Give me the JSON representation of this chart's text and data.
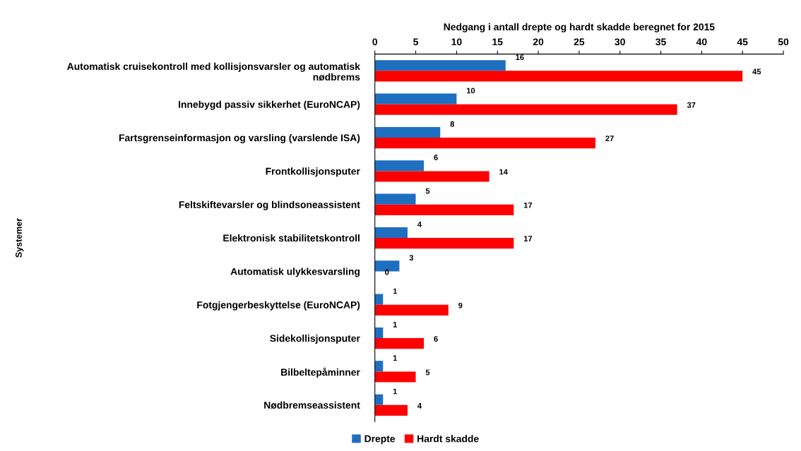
{
  "chart_data": {
    "type": "bar",
    "orientation": "horizontal",
    "xlabel": "Nedgang i antall drepte og hardt skadde beregnet for 2015",
    "ylabel": "Systemer",
    "categories": [
      "Automatisk cruisekontroll med kollisjonsvarsler og automatisk\nnødbrems",
      "Innebygd passiv sikkerhet (EuroNCAP)",
      "Fartsgrenseinformasjon og varsling (varslende ISA)",
      "Frontkollisjonsputer",
      "Feltskiftevarsler og blindsoneassistent",
      "Elektronisk stabilitetskontroll",
      "Automatisk ulykkesvarsling",
      "Fotgjengerbeskyttelse (EuroNCAP)",
      "Sidekollisjonsputer",
      "Bilbeltepåminner",
      "Nødbremseassistent"
    ],
    "series": [
      {
        "name": "Drepte",
        "color": "#1f6fc0",
        "values": [
          16,
          10,
          8,
          6,
          5,
          4,
          3,
          1,
          1,
          1,
          1
        ]
      },
      {
        "name": "Hardt skadde",
        "color": "#ff0000",
        "values": [
          45,
          37,
          27,
          14,
          17,
          17,
          0,
          9,
          6,
          5,
          4
        ]
      }
    ],
    "xlim": [
      0,
      50
    ],
    "xticks": [
      0,
      5,
      10,
      15,
      20,
      25,
      30,
      35,
      40,
      45,
      50
    ],
    "data_labels": true,
    "legend": "bottom",
    "grid": false
  }
}
